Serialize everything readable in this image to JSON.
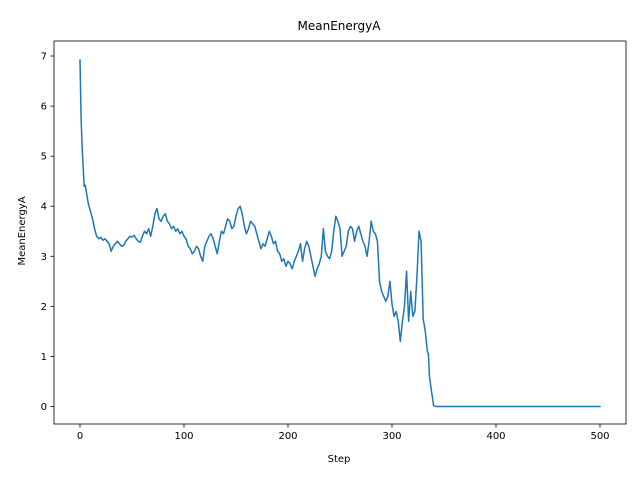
{
  "chart_data": {
    "type": "line",
    "title": "MeanEnergyA",
    "xlabel": "Step",
    "ylabel": "MeanEnergyA",
    "xlim": [
      -25,
      525
    ],
    "ylim": [
      -0.35,
      7.3
    ],
    "xticks": [
      0,
      100,
      200,
      300,
      400,
      500
    ],
    "yticks": [
      0,
      1,
      2,
      3,
      4,
      5,
      6,
      7
    ],
    "grid": false,
    "line_color": "#1f77b4",
    "series": [
      {
        "x": [
          0,
          1,
          2,
          3,
          4,
          5,
          6,
          8,
          10,
          12,
          14,
          16,
          18,
          20,
          22,
          24,
          26,
          28,
          30,
          32,
          34,
          36,
          38,
          40,
          42,
          44,
          46,
          48,
          50,
          52,
          54,
          56,
          58,
          60,
          62,
          64,
          66,
          68,
          70,
          72,
          74,
          76,
          78,
          80,
          82,
          84,
          86,
          88,
          90,
          92,
          94,
          96,
          98,
          100,
          102,
          104,
          106,
          108,
          110,
          112,
          114,
          116,
          118,
          120,
          122,
          124,
          126,
          128,
          130,
          132,
          134,
          136,
          138,
          140,
          142,
          144,
          146,
          148,
          150,
          152,
          154,
          156,
          158,
          160,
          162,
          164,
          166,
          168,
          170,
          172,
          174,
          176,
          178,
          180,
          182,
          184,
          186,
          188,
          190,
          192,
          194,
          196,
          198,
          200,
          202,
          204,
          206,
          208,
          210,
          212,
          214,
          216,
          218,
          220,
          222,
          224,
          226,
          228,
          230,
          232,
          234,
          236,
          238,
          240,
          242,
          244,
          246,
          248,
          250,
          252,
          254,
          256,
          258,
          260,
          262,
          264,
          266,
          268,
          270,
          272,
          274,
          276,
          278,
          280,
          282,
          284,
          286,
          288,
          290,
          292,
          294,
          296,
          298,
          300,
          302,
          304,
          306,
          308,
          310,
          312,
          314,
          316,
          318,
          320,
          322,
          324,
          326,
          328,
          329,
          330,
          332,
          334,
          335,
          336,
          338,
          340,
          342,
          350,
          400,
          450,
          500
        ],
        "y": [
          6.92,
          5.8,
          5.2,
          4.8,
          4.4,
          4.42,
          4.3,
          4.05,
          3.9,
          3.75,
          3.55,
          3.4,
          3.35,
          3.38,
          3.32,
          3.35,
          3.3,
          3.25,
          3.1,
          3.2,
          3.25,
          3.3,
          3.25,
          3.2,
          3.22,
          3.3,
          3.35,
          3.4,
          3.38,
          3.42,
          3.35,
          3.3,
          3.28,
          3.4,
          3.5,
          3.45,
          3.55,
          3.4,
          3.6,
          3.85,
          3.95,
          3.75,
          3.7,
          3.8,
          3.85,
          3.7,
          3.65,
          3.55,
          3.6,
          3.5,
          3.55,
          3.45,
          3.5,
          3.4,
          3.35,
          3.2,
          3.15,
          3.05,
          3.1,
          3.2,
          3.15,
          3.0,
          2.9,
          3.2,
          3.3,
          3.4,
          3.45,
          3.35,
          3.2,
          3.05,
          3.3,
          3.5,
          3.45,
          3.6,
          3.75,
          3.7,
          3.55,
          3.6,
          3.8,
          3.95,
          4.0,
          3.85,
          3.6,
          3.45,
          3.55,
          3.7,
          3.65,
          3.6,
          3.45,
          3.3,
          3.15,
          3.25,
          3.2,
          3.35,
          3.5,
          3.4,
          3.25,
          3.3,
          3.1,
          3.05,
          2.9,
          2.95,
          2.8,
          2.9,
          2.85,
          2.75,
          2.9,
          3.0,
          3.1,
          3.25,
          2.9,
          3.15,
          3.3,
          3.2,
          3.0,
          2.8,
          2.6,
          2.75,
          2.85,
          3.0,
          3.55,
          3.1,
          3.0,
          2.95,
          3.1,
          3.5,
          3.8,
          3.7,
          3.55,
          3.0,
          3.1,
          3.2,
          3.5,
          3.6,
          3.55,
          3.3,
          3.5,
          3.6,
          3.45,
          3.3,
          3.2,
          3.0,
          3.3,
          3.7,
          3.5,
          3.45,
          3.3,
          2.5,
          2.3,
          2.2,
          2.1,
          2.2,
          2.5,
          2.05,
          1.8,
          1.9,
          1.7,
          1.3,
          1.7,
          2.0,
          2.7,
          1.7,
          2.3,
          1.8,
          1.9,
          2.6,
          3.5,
          3.3,
          2.5,
          1.75,
          1.5,
          1.1,
          1.05,
          0.6,
          0.3,
          0.02,
          0.0,
          0.0,
          0.0,
          0.0,
          0.0
        ]
      }
    ]
  }
}
